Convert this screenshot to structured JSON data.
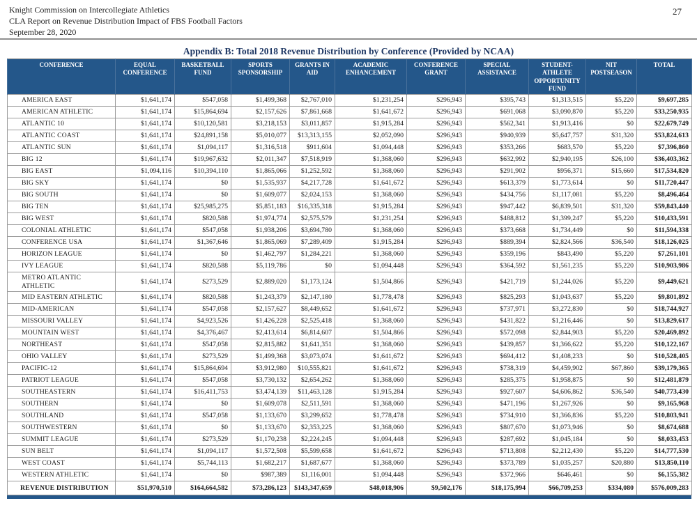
{
  "page": {
    "header_lines": [
      "Knight Commission on Intercollegiate Athletics",
      "CLA Report on Revenue Distribution Impact of FBS Football Factors",
      "September 28, 2020"
    ],
    "page_number": "27",
    "title": "Appendix B: Total 2018 Revenue Distribution by Conference (Provided by NCAA)"
  },
  "colors": {
    "header_bg": "#24578a",
    "title_color": "#1f3864",
    "border_gray": "#9a9a9a"
  },
  "table": {
    "columns": [
      "CONFERENCE",
      "EQUAL CONFERENCE",
      "BASKETBALL FUND",
      "SPORTS SPONSORSHIP",
      "GRANTS IN AID",
      "ACADEMIC ENHANCEMENT",
      "CONFERENCE GRANT",
      "SPECIAL ASSISTANCE",
      "STUDENT-ATHLETE OPPORTUNITY FUND",
      "NIT POSTSEASON",
      "TOTAL"
    ],
    "rows": [
      {
        "conference": "AMERICA EAST",
        "values": [
          "$1,641,174",
          "$547,058",
          "$1,499,368",
          "$2,767,010",
          "$1,231,254",
          "$296,943",
          "$395,743",
          "$1,313,515",
          "$5,220",
          "$9,697,285"
        ]
      },
      {
        "conference": "AMERICAN ATHLETIC",
        "values": [
          "$1,641,174",
          "$15,864,694",
          "$2,157,626",
          "$7,861,668",
          "$1,641,672",
          "$296,943",
          "$691,068",
          "$3,090,870",
          "$5,220",
          "$33,250,935"
        ]
      },
      {
        "conference": "ATLANTIC 10",
        "values": [
          "$1,641,174",
          "$10,120,581",
          "$3,218,153",
          "$3,011,857",
          "$1,915,284",
          "$296,943",
          "$562,341",
          "$1,913,416",
          "$0",
          "$22,679,749"
        ]
      },
      {
        "conference": "ATLANTIC COAST",
        "values": [
          "$1,641,174",
          "$24,891,158",
          "$5,010,077",
          "$13,313,155",
          "$2,052,090",
          "$296,943",
          "$940,939",
          "$5,647,757",
          "$31,320",
          "$53,824,613"
        ]
      },
      {
        "conference": "ATLANTIC SUN",
        "values": [
          "$1,641,174",
          "$1,094,117",
          "$1,316,518",
          "$911,604",
          "$1,094,448",
          "$296,943",
          "$353,266",
          "$683,570",
          "$5,220",
          "$7,396,860"
        ]
      },
      {
        "conference": "BIG 12",
        "values": [
          "$1,641,174",
          "$19,967,632",
          "$2,011,347",
          "$7,518,919",
          "$1,368,060",
          "$296,943",
          "$632,992",
          "$2,940,195",
          "$26,100",
          "$36,403,362"
        ]
      },
      {
        "conference": "BIG EAST",
        "values": [
          "$1,094,116",
          "$10,394,110",
          "$1,865,066",
          "$1,252,592",
          "$1,368,060",
          "$296,943",
          "$291,902",
          "$956,371",
          "$15,660",
          "$17,534,820"
        ]
      },
      {
        "conference": "BIG SKY",
        "values": [
          "$1,641,174",
          "$0",
          "$1,535,937",
          "$4,217,728",
          "$1,641,672",
          "$296,943",
          "$613,379",
          "$1,773,614",
          "$0",
          "$11,720,447"
        ]
      },
      {
        "conference": "BIG SOUTH",
        "values": [
          "$1,641,174",
          "$0",
          "$1,609,077",
          "$2,024,153",
          "$1,368,060",
          "$296,943",
          "$434,756",
          "$1,117,081",
          "$5,220",
          "$8,496,464"
        ]
      },
      {
        "conference": "BIG TEN",
        "values": [
          "$1,641,174",
          "$25,985,275",
          "$5,851,183",
          "$16,335,318",
          "$1,915,284",
          "$296,943",
          "$947,442",
          "$6,839,501",
          "$31,320",
          "$59,843,440"
        ]
      },
      {
        "conference": "BIG WEST",
        "values": [
          "$1,641,174",
          "$820,588",
          "$1,974,774",
          "$2,575,579",
          "$1,231,254",
          "$296,943",
          "$488,812",
          "$1,399,247",
          "$5,220",
          "$10,433,591"
        ]
      },
      {
        "conference": "COLONIAL ATHLETIC",
        "values": [
          "$1,641,174",
          "$547,058",
          "$1,938,206",
          "$3,694,780",
          "$1,368,060",
          "$296,943",
          "$373,668",
          "$1,734,449",
          "$0",
          "$11,594,338"
        ]
      },
      {
        "conference": "CONFERENCE USA",
        "values": [
          "$1,641,174",
          "$1,367,646",
          "$1,865,069",
          "$7,289,409",
          "$1,915,284",
          "$296,943",
          "$889,394",
          "$2,824,566",
          "$36,540",
          "$18,126,025"
        ]
      },
      {
        "conference": "HORIZON LEAGUE",
        "values": [
          "$1,641,174",
          "$0",
          "$1,462,797",
          "$1,284,221",
          "$1,368,060",
          "$296,943",
          "$359,196",
          "$843,490",
          "$5,220",
          "$7,261,101"
        ]
      },
      {
        "conference": "IVY LEAGUE",
        "values": [
          "$1,641,174",
          "$820,588",
          "$5,119,786",
          "$0",
          "$1,094,448",
          "$296,943",
          "$364,592",
          "$1,561,235",
          "$5,220",
          "$10,903,986"
        ]
      },
      {
        "conference": "METRO ATLANTIC ATHLETIC",
        "values": [
          "$1,641,174",
          "$273,529",
          "$2,889,020",
          "$1,173,124",
          "$1,504,866",
          "$296,943",
          "$421,719",
          "$1,244,026",
          "$5,220",
          "$9,449,621"
        ]
      },
      {
        "conference": "MID EASTERN ATHLETIC",
        "values": [
          "$1,641,174",
          "$820,588",
          "$1,243,379",
          "$2,147,180",
          "$1,778,478",
          "$296,943",
          "$825,293",
          "$1,043,637",
          "$5,220",
          "$9,801,892"
        ]
      },
      {
        "conference": "MID-AMERICAN",
        "values": [
          "$1,641,174",
          "$547,058",
          "$2,157,627",
          "$8,449,652",
          "$1,641,672",
          "$296,943",
          "$737,971",
          "$3,272,830",
          "$0",
          "$18,744,927"
        ]
      },
      {
        "conference": "MISSOURI VALLEY",
        "values": [
          "$1,641,174",
          "$4,923,526",
          "$1,426,228",
          "$2,525,418",
          "$1,368,060",
          "$296,943",
          "$431,822",
          "$1,216,446",
          "$0",
          "$13,829,617"
        ]
      },
      {
        "conference": "MOUNTAIN WEST",
        "values": [
          "$1,641,174",
          "$4,376,467",
          "$2,413,614",
          "$6,814,607",
          "$1,504,866",
          "$296,943",
          "$572,098",
          "$2,844,903",
          "$5,220",
          "$20,469,892"
        ]
      },
      {
        "conference": "NORTHEAST",
        "values": [
          "$1,641,174",
          "$547,058",
          "$2,815,882",
          "$1,641,351",
          "$1,368,060",
          "$296,943",
          "$439,857",
          "$1,366,622",
          "$5,220",
          "$10,122,167"
        ]
      },
      {
        "conference": "OHIO VALLEY",
        "values": [
          "$1,641,174",
          "$273,529",
          "$1,499,368",
          "$3,073,074",
          "$1,641,672",
          "$296,943",
          "$694,412",
          "$1,408,233",
          "$0",
          "$10,528,405"
        ]
      },
      {
        "conference": "PACIFIC-12",
        "values": [
          "$1,641,174",
          "$15,864,694",
          "$3,912,980",
          "$10,555,821",
          "$1,641,672",
          "$296,943",
          "$738,319",
          "$4,459,902",
          "$67,860",
          "$39,179,365"
        ]
      },
      {
        "conference": "PATRIOT LEAGUE",
        "values": [
          "$1,641,174",
          "$547,058",
          "$3,730,132",
          "$2,654,262",
          "$1,368,060",
          "$296,943",
          "$285,375",
          "$1,958,875",
          "$0",
          "$12,481,879"
        ]
      },
      {
        "conference": "SOUTHEASTERN",
        "values": [
          "$1,641,174",
          "$16,411,753",
          "$3,474,139",
          "$11,463,128",
          "$1,915,284",
          "$296,943",
          "$927,607",
          "$4,606,862",
          "$36,540",
          "$40,773,430"
        ]
      },
      {
        "conference": "SOUTHERN",
        "values": [
          "$1,641,174",
          "$0",
          "$1,609,078",
          "$2,511,591",
          "$1,368,060",
          "$296,943",
          "$471,196",
          "$1,267,926",
          "$0",
          "$9,165,968"
        ]
      },
      {
        "conference": "SOUTHLAND",
        "values": [
          "$1,641,174",
          "$547,058",
          "$1,133,670",
          "$3,299,652",
          "$1,778,478",
          "$296,943",
          "$734,910",
          "$1,366,836",
          "$5,220",
          "$10,803,941"
        ]
      },
      {
        "conference": "SOUTHWESTERN",
        "values": [
          "$1,641,174",
          "$0",
          "$1,133,670",
          "$2,353,225",
          "$1,368,060",
          "$296,943",
          "$807,670",
          "$1,073,946",
          "$0",
          "$8,674,688"
        ]
      },
      {
        "conference": "SUMMIT LEAGUE",
        "values": [
          "$1,641,174",
          "$273,529",
          "$1,170,238",
          "$2,224,245",
          "$1,094,448",
          "$296,943",
          "$287,692",
          "$1,045,184",
          "$0",
          "$8,033,453"
        ]
      },
      {
        "conference": "SUN BELT",
        "values": [
          "$1,641,174",
          "$1,094,117",
          "$1,572,508",
          "$5,599,658",
          "$1,641,672",
          "$296,943",
          "$713,808",
          "$2,212,430",
          "$5,220",
          "$14,777,530"
        ]
      },
      {
        "conference": "WEST COAST",
        "values": [
          "$1,641,174",
          "$5,744,113",
          "$1,682,217",
          "$1,687,677",
          "$1,368,060",
          "$296,943",
          "$373,789",
          "$1,035,257",
          "$20,880",
          "$13,850,110"
        ]
      },
      {
        "conference": "WESTERN ATHLETIC",
        "values": [
          "$1,641,174",
          "$0",
          "$987,389",
          "$1,116,001",
          "$1,094,448",
          "$296,943",
          "$372,966",
          "$646,461",
          "$0",
          "$6,155,382"
        ]
      }
    ],
    "footer": {
      "label": "REVENUE DISTRIBUTION",
      "values": [
        "$51,970,510",
        "$164,664,582",
        "$73,286,123",
        "$143,347,659",
        "$48,018,906",
        "$9,502,176",
        "$18,175,994",
        "$66,709,253",
        "$334,080",
        "$576,009,283"
      ]
    }
  }
}
